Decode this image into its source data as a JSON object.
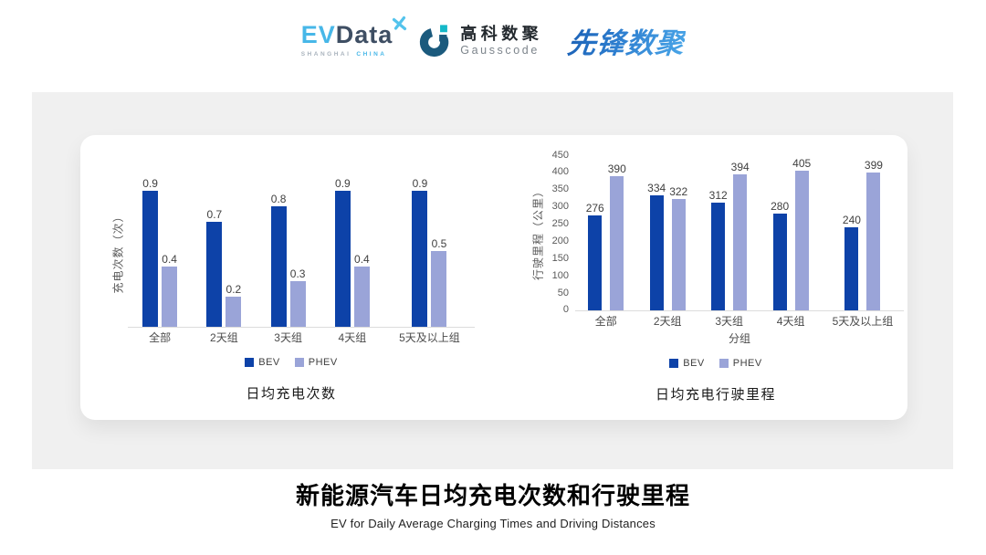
{
  "header": {
    "evdata_logo": {
      "ev": "EV",
      "data": "Data",
      "sub_left": "SHANGHAI",
      "sub_right": "CHINA"
    },
    "gausscode_logo": {
      "cn": "高科数聚",
      "en": "Gausscode"
    },
    "pioneer_logo": {
      "text": "先锋数聚"
    }
  },
  "colors": {
    "bev": "#0d42a8",
    "phev": "#9aa4d8",
    "panel_gray": "#f0f0f0",
    "baseline_gray": "#dcdcdc",
    "evdata_blue": "#47b7e8",
    "evdata_slate": "#3e4e63",
    "gauss_teal": "#14b8c8",
    "gauss_navy": "#1b5a7d",
    "pioneer_blue": "#2e7fd0"
  },
  "chart_data": [
    {
      "type": "bar",
      "title": "日均充电次数",
      "ylabel": "充电次数（次）",
      "xlabel": "",
      "categories": [
        "全部",
        "2天组",
        "3天组",
        "4天组",
        "5天及以上组"
      ],
      "series": [
        {
          "name": "BEV",
          "color": "#0d42a8",
          "values": [
            0.9,
            0.7,
            0.8,
            0.9,
            0.9
          ]
        },
        {
          "name": "PHEV",
          "color": "#9aa4d8",
          "values": [
            0.4,
            0.2,
            0.3,
            0.4,
            0.5
          ]
        }
      ],
      "ylim": [
        0,
        1
      ],
      "yticks": [],
      "grid": false,
      "value_labels": true,
      "legend_position": "bottom"
    },
    {
      "type": "bar",
      "title": "日均充电行驶里程",
      "ylabel": "行驶里程（公里）",
      "xlabel": "分组",
      "categories": [
        "全部",
        "2天组",
        "3天组",
        "4天组",
        "5天及以上组"
      ],
      "series": [
        {
          "name": "BEV",
          "color": "#0d42a8",
          "values": [
            276,
            334,
            312,
            280,
            240
          ]
        },
        {
          "name": "PHEV",
          "color": "#9aa4d8",
          "values": [
            390,
            322,
            394,
            405,
            399
          ]
        }
      ],
      "ylim": [
        0,
        450
      ],
      "yticks": [
        450,
        400,
        350,
        300,
        250,
        200,
        150,
        100,
        50,
        0
      ],
      "grid": false,
      "value_labels": true,
      "legend_position": "bottom"
    }
  ],
  "footer": {
    "title": "新能源汽车日均充电次数和行驶里程",
    "subtitle": "EV for Daily Average Charging Times and Driving Distances"
  }
}
